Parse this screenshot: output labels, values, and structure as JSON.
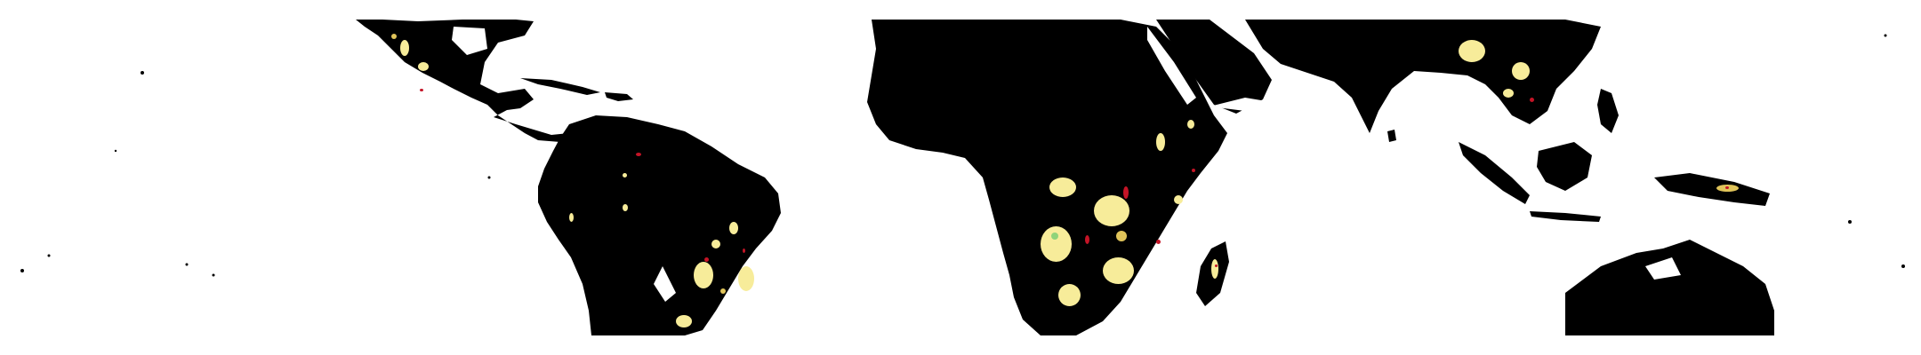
{
  "map": {
    "background_color": "#ffffff",
    "land_color": "#000000",
    "legend_classes": [
      {
        "key": "light",
        "color": "#f7ec9a"
      },
      {
        "key": "medium",
        "color": "#e0c45a"
      },
      {
        "key": "high",
        "color": "#c41426"
      },
      {
        "key": "veg",
        "color": "#8fd37a"
      }
    ]
  }
}
